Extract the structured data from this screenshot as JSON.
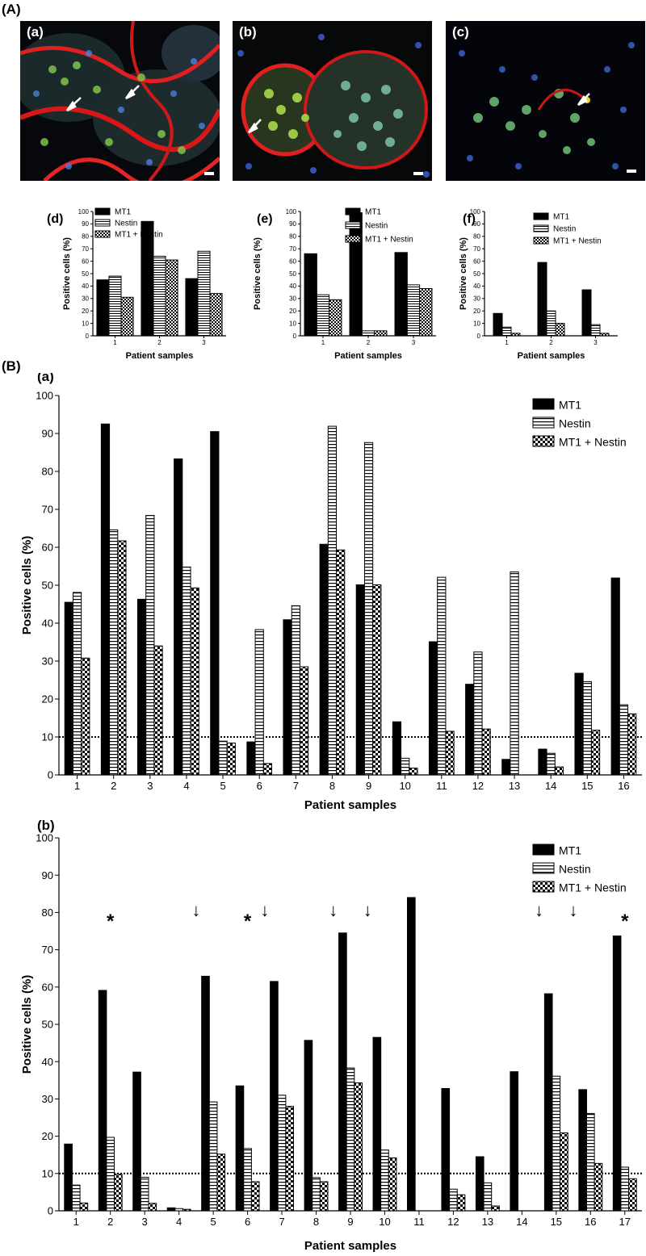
{
  "labels": {
    "A": "(A)",
    "B": "(B)",
    "Ba": "(a)",
    "Bb": "(b)"
  },
  "micrographs": [
    {
      "label": "(a)",
      "image": "immunofluorescence micrograph, red membrane staining with green/blue cells, two arrows"
    },
    {
      "label": "(b)",
      "image": "immunofluorescence micrograph, two round cell clusters outlined in red, one arrow"
    },
    {
      "label": "(c)",
      "image": "immunofluorescence micrograph, scattered green/blue cells on dark background, one arrow"
    }
  ],
  "legend_labels": [
    "MT1",
    "Nestin",
    "MT1 + Nestin"
  ],
  "colors": {
    "mt1": "#000000",
    "nestin": "#ffffff",
    "both": "checkered"
  },
  "chart_data": [
    {
      "id": "d",
      "type": "bar",
      "title": "(d)",
      "categories": [
        "1",
        "2",
        "3"
      ],
      "series": [
        {
          "name": "MT1",
          "values": [
            45,
            92,
            46
          ]
        },
        {
          "name": "Nestin",
          "values": [
            48,
            64,
            68
          ]
        },
        {
          "name": "MT1 + Nestin",
          "values": [
            31,
            61,
            34
          ]
        }
      ],
      "xlabel": "Patient samples",
      "ylabel": "Positive cells (%)",
      "ylim": [
        0,
        100
      ],
      "yticks": [
        0,
        10,
        20,
        30,
        40,
        50,
        60,
        70,
        80,
        90,
        100
      ],
      "legend": "top-center"
    },
    {
      "id": "e",
      "type": "bar",
      "title": "(e)",
      "categories": [
        "1",
        "2",
        "3"
      ],
      "series": [
        {
          "name": "MT1",
          "values": [
            66,
            99,
            67
          ]
        },
        {
          "name": "Nestin",
          "values": [
            33,
            4,
            41
          ]
        },
        {
          "name": "MT1 + Nestin",
          "values": [
            29,
            4,
            38
          ]
        }
      ],
      "xlabel": "Patient samples",
      "ylabel": "Positive cells (%)",
      "ylim": [
        0,
        100
      ],
      "yticks": [
        0,
        10,
        20,
        30,
        40,
        50,
        60,
        70,
        80,
        90,
        100
      ],
      "legend": "top-center"
    },
    {
      "id": "f",
      "type": "bar",
      "title": "(f)",
      "categories": [
        "1",
        "2",
        "3"
      ],
      "series": [
        {
          "name": "MT1",
          "values": [
            18,
            59,
            37
          ]
        },
        {
          "name": "Nestin",
          "values": [
            7,
            20,
            9
          ]
        },
        {
          "name": "MT1 + Nestin",
          "values": [
            2,
            10,
            2
          ]
        }
      ],
      "xlabel": "Patient samples",
      "ylabel": "Positive cells (%)",
      "ylim": [
        0,
        100
      ],
      "yticks": [
        0,
        10,
        20,
        30,
        40,
        50,
        60,
        70,
        80,
        90,
        100
      ],
      "legend": "top-right"
    },
    {
      "id": "Ba",
      "type": "bar",
      "title": "(a)",
      "categories": [
        "1",
        "2",
        "3",
        "4",
        "5",
        "6",
        "7",
        "8",
        "9",
        "10",
        "11",
        "12",
        "13",
        "14",
        "15",
        "16"
      ],
      "series": [
        {
          "name": "MT1",
          "values": [
            45.5,
            92.5,
            46.3,
            83.3,
            90.5,
            8.7,
            40.9,
            60.8,
            50.1,
            14.0,
            35.1,
            23.9,
            4.1,
            6.8,
            26.8,
            51.9
          ]
        },
        {
          "name": "Nestin",
          "values": [
            48.1,
            64.6,
            68.4,
            54.8,
            8.9,
            38.3,
            44.6,
            91.9,
            87.6,
            4.4,
            52.1,
            32.4,
            53.5,
            5.7,
            24.6,
            18.5
          ]
        },
        {
          "name": "MT1 + Nestin",
          "values": [
            30.8,
            61.7,
            34.0,
            49.3,
            8.4,
            3.0,
            28.5,
            59.3,
            50.1,
            1.8,
            11.5,
            12.1,
            0,
            2.1,
            11.8,
            16.1
          ]
        }
      ],
      "xlabel": "Patient samples",
      "ylabel": "Positive cells (%)",
      "ylim": [
        0,
        100
      ],
      "yticks": [
        0,
        10,
        20,
        30,
        40,
        50,
        60,
        70,
        80,
        90,
        100
      ],
      "reference_line": 10,
      "legend": "top-right"
    },
    {
      "id": "Bb",
      "type": "bar",
      "title": "(b)",
      "categories": [
        "1",
        "2",
        "3",
        "4",
        "5",
        "6",
        "7",
        "8",
        "9",
        "10",
        "11",
        "12",
        "13",
        "14",
        "15",
        "16",
        "17"
      ],
      "series": [
        {
          "name": "MT1",
          "values": [
            17.9,
            59.1,
            37.2,
            0.8,
            62.9,
            33.5,
            61.5,
            45.7,
            74.5,
            46.5,
            84.0,
            32.8,
            14.5,
            37.3,
            58.2,
            32.5,
            73.7
          ]
        },
        {
          "name": "Nestin",
          "values": [
            6.9,
            19.7,
            9.0,
            0.6,
            29.2,
            16.7,
            31.0,
            8.9,
            38.3,
            16.3,
            0,
            5.8,
            7.5,
            0,
            36.1,
            26.1,
            11.7
          ]
        },
        {
          "name": "MT1 + Nestin",
          "values": [
            2.1,
            9.8,
            2.0,
            0.4,
            15.2,
            7.8,
            28.0,
            7.8,
            34.3,
            14.2,
            0,
            4.3,
            1.3,
            0,
            20.9,
            12.7,
            8.6
          ]
        }
      ],
      "xlabel": "Patient samples",
      "ylabel": "Positive cells (%)",
      "ylim": [
        0,
        100
      ],
      "yticks": [
        0,
        10,
        20,
        30,
        40,
        50,
        60,
        70,
        80,
        90,
        100
      ],
      "reference_line": 10,
      "legend": "top-right",
      "annotations": [
        {
          "text": "*",
          "category": "2"
        },
        {
          "text": "↓",
          "category": "4.5"
        },
        {
          "text": "*",
          "category": "6"
        },
        {
          "text": "↓",
          "category": "6.5"
        },
        {
          "text": "↓",
          "category": "8.5"
        },
        {
          "text": "↓",
          "category": "9.5"
        },
        {
          "text": "↓",
          "category": "14.5"
        },
        {
          "text": "↓",
          "category": "15.5"
        },
        {
          "text": "*",
          "category": "17"
        }
      ]
    }
  ]
}
